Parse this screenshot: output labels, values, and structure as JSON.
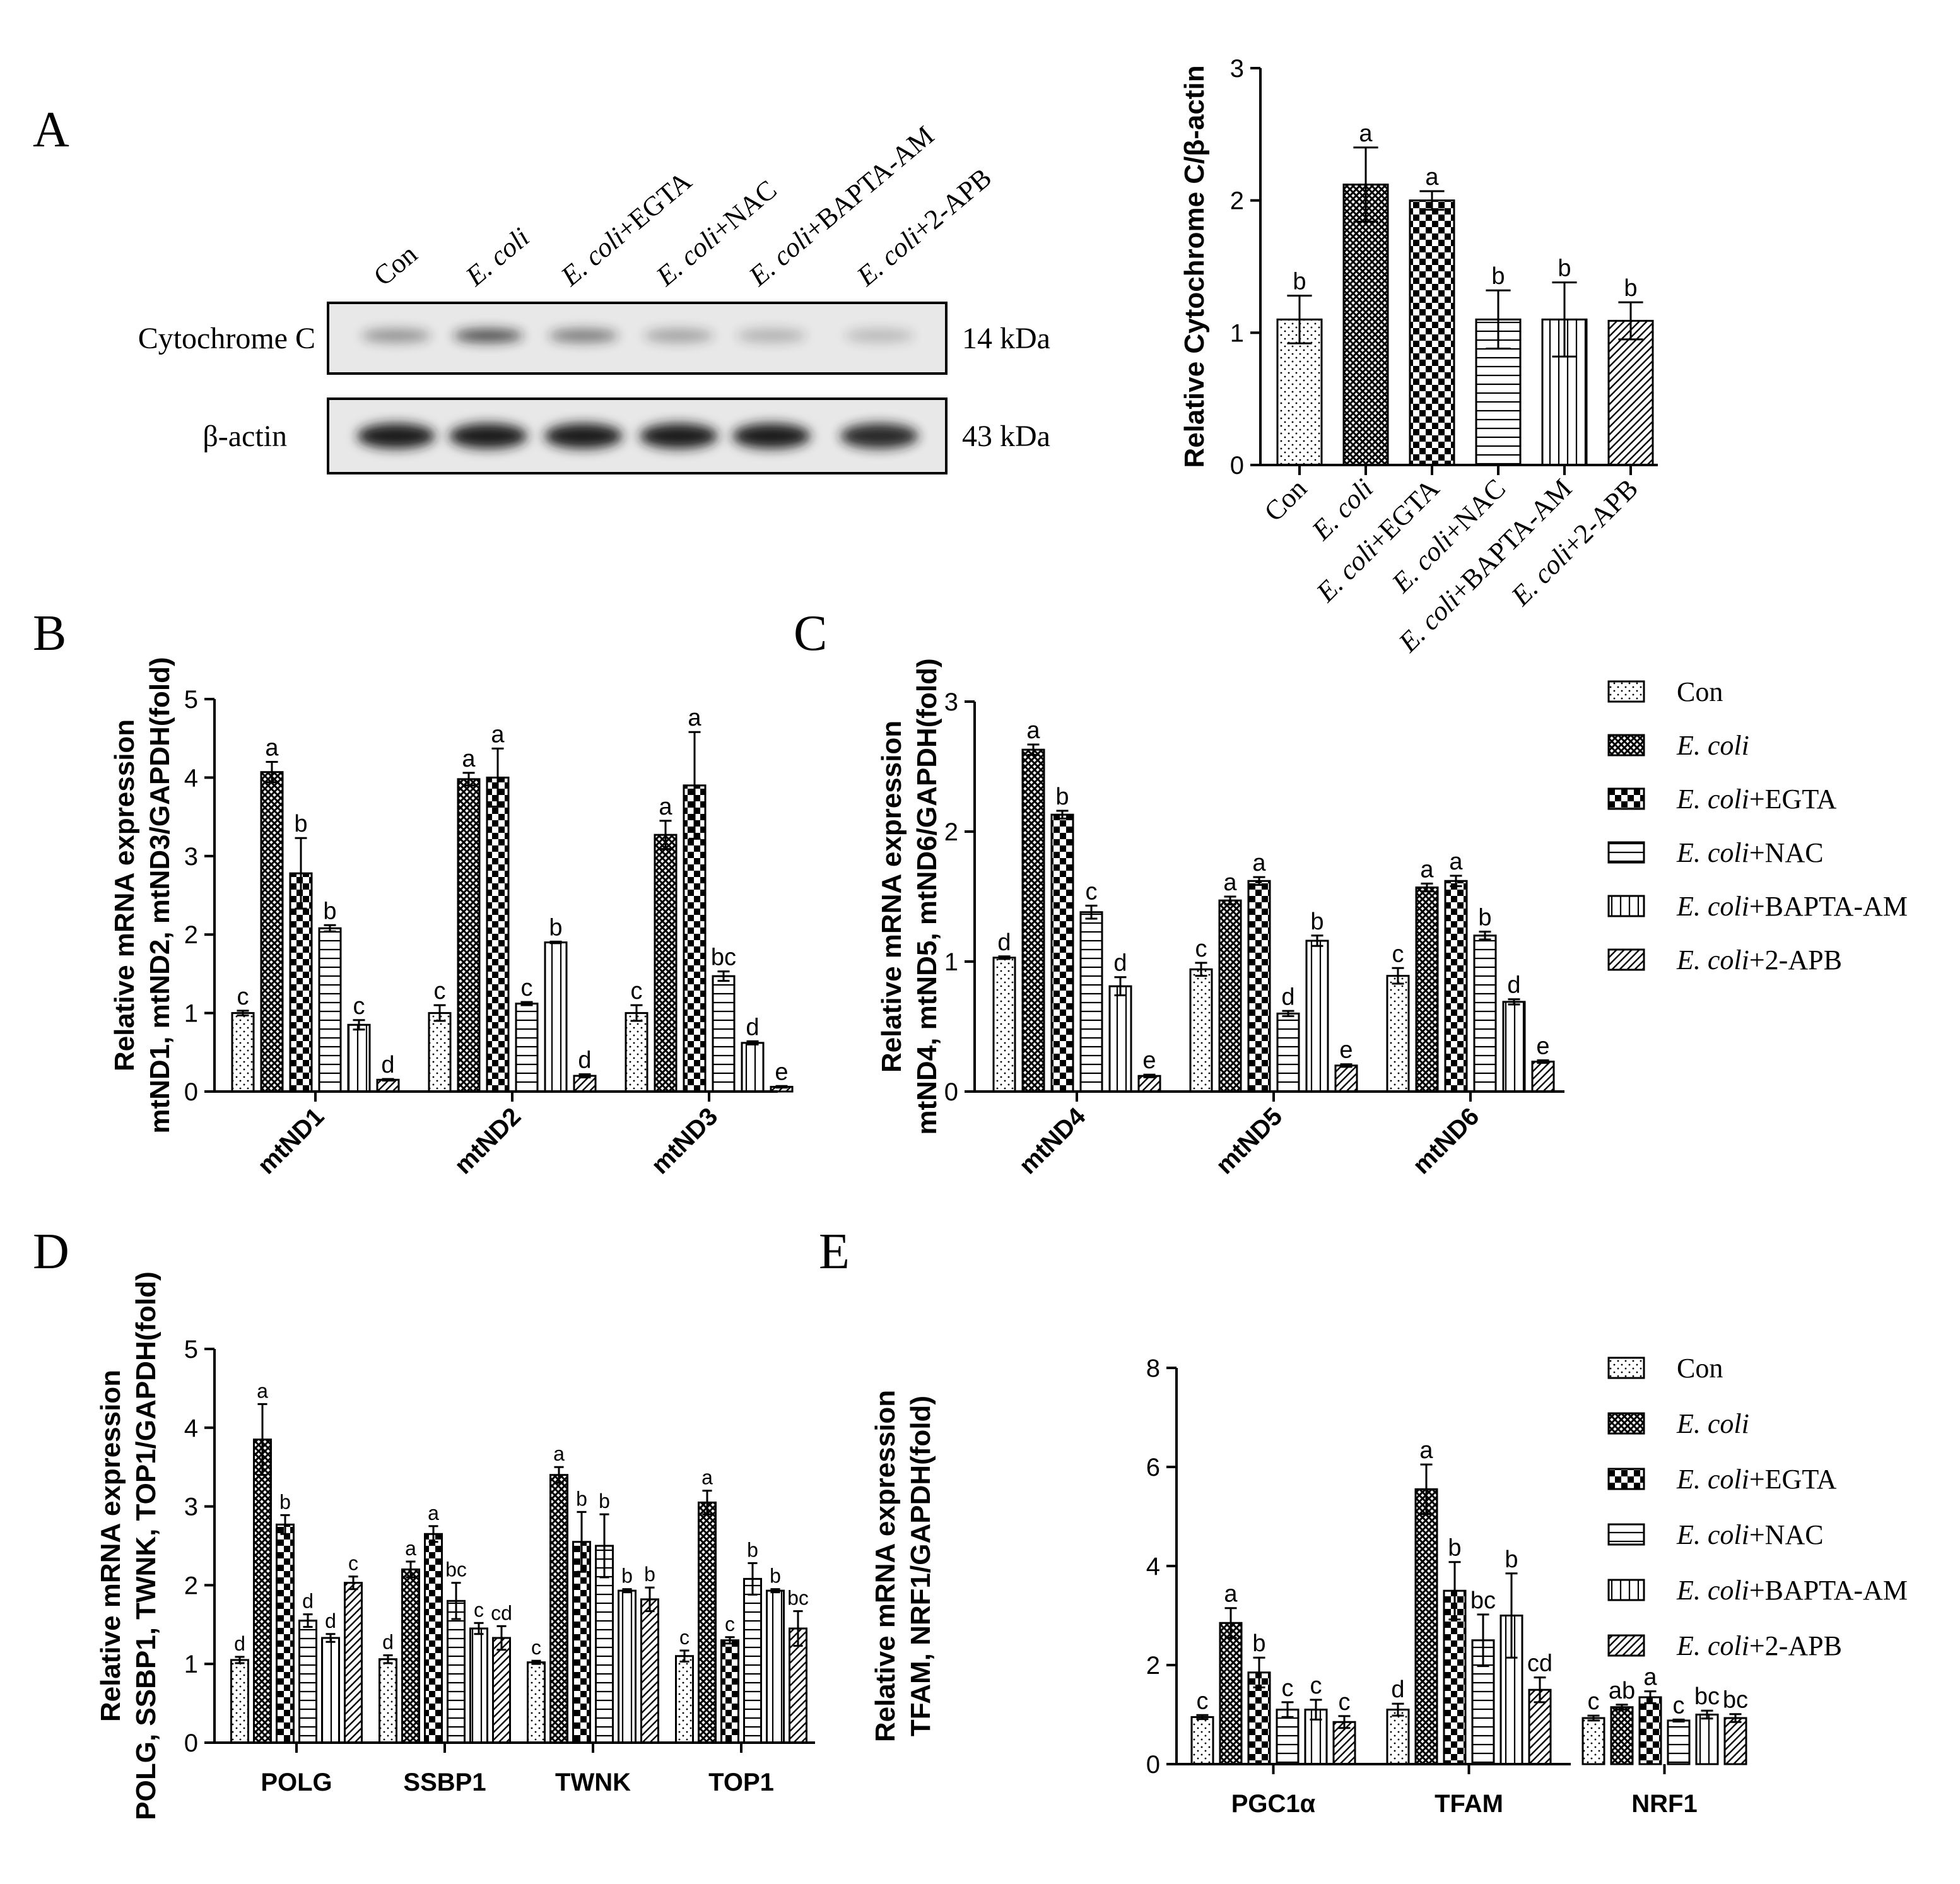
{
  "colors": {
    "ink": "#000000",
    "band": "#1a1a1a",
    "blot_bg": "#e8e8e8"
  },
  "legend": {
    "entries": [
      {
        "pattern": "dots",
        "base": "E. coli",
        "suffix": "",
        "plain": "Con"
      },
      {
        "pattern": "cross",
        "base": "E. coli",
        "suffix": "",
        "plain": ""
      },
      {
        "pattern": "check",
        "base": "E. coli",
        "suffix": "+EGTA",
        "plain": ""
      },
      {
        "pattern": "hlines",
        "base": "E. coli",
        "suffix": "+NAC",
        "plain": ""
      },
      {
        "pattern": "vlines",
        "base": "E. coli",
        "suffix": "+BAPTA-AM",
        "plain": ""
      },
      {
        "pattern": "diag",
        "base": "E. coli",
        "suffix": "+2-APB",
        "plain": ""
      }
    ]
  },
  "panel_a": {
    "letter": "A",
    "lanes": [
      {
        "plain": "Con",
        "base": "",
        "suffix": ""
      },
      {
        "plain": "",
        "base": "E. coli",
        "suffix": ""
      },
      {
        "plain": "",
        "base": "E. coli",
        "suffix": "+EGTA"
      },
      {
        "plain": "",
        "base": "E. coli",
        "suffix": "+NAC"
      },
      {
        "plain": "",
        "base": "E. coli",
        "suffix": "+BAPTA-AM"
      },
      {
        "plain": "",
        "base": "E. coli",
        "suffix": "+2-APB"
      }
    ],
    "blots": [
      {
        "label": "Cytochrome C",
        "size": "14 kDa",
        "intensity": [
          0.35,
          0.8,
          0.5,
          0.25,
          0.15,
          0.1
        ]
      },
      {
        "label": "β-actin",
        "size": "43 kDa",
        "intensity": [
          1.0,
          1.0,
          1.0,
          1.0,
          1.0,
          0.85
        ]
      }
    ]
  },
  "chart_data": [
    {
      "panel": "A",
      "type": "bar",
      "ylabel": "Relative Cytochrome C/β-actin",
      "ylim": [
        0,
        3
      ],
      "yticks": [
        0,
        1,
        2,
        3
      ],
      "categories": [
        "Con",
        "E. coli",
        "E. coli+EGTA",
        "E. coli+NAC",
        "E. coli+BAPTA-AM",
        "E. coli+2-APB"
      ],
      "series": [
        {
          "values": [
            1.1,
            2.12,
            2.0,
            1.1,
            1.1,
            1.09
          ],
          "errors": [
            0.18,
            0.28,
            0.07,
            0.22,
            0.28,
            0.14
          ],
          "letters": [
            "b",
            "a",
            "a",
            "b",
            "b",
            "b"
          ]
        }
      ]
    },
    {
      "panel": "B",
      "type": "bar",
      "ylabel": [
        "Relative mRNA expression",
        "mtND1, mtND2, mtND3/GAPDH(fold)"
      ],
      "ylim": [
        0,
        5
      ],
      "yticks": [
        0,
        1,
        2,
        3,
        4,
        5
      ],
      "categories": [
        "mtND1",
        "mtND2",
        "mtND3"
      ],
      "series": [
        {
          "name": "Con",
          "values": [
            1.0,
            1.0,
            1.0
          ],
          "errors": [
            0.03,
            0.1,
            0.1
          ],
          "letters": [
            "c",
            "c",
            "c"
          ]
        },
        {
          "name": "E. coli",
          "values": [
            4.07,
            3.98,
            3.27
          ],
          "errors": [
            0.13,
            0.08,
            0.18
          ],
          "letters": [
            "a",
            "a",
            "a"
          ]
        },
        {
          "name": "E. coli+EGTA",
          "values": [
            2.78,
            4.0,
            3.9
          ],
          "errors": [
            0.45,
            0.37,
            0.68
          ],
          "letters": [
            "b",
            "a",
            "a"
          ]
        },
        {
          "name": "E. coli+NAC",
          "values": [
            2.08,
            1.12,
            1.47
          ],
          "errors": [
            0.04,
            0.02,
            0.06
          ],
          "letters": [
            "b",
            "c",
            "bc"
          ]
        },
        {
          "name": "E. coli+BAPTA-AM",
          "values": [
            0.85,
            1.9,
            0.62
          ],
          "errors": [
            0.06,
            0.01,
            0.02
          ],
          "letters": [
            "c",
            "b",
            "d"
          ]
        },
        {
          "name": "E. coli+2-APB",
          "values": [
            0.15,
            0.2,
            0.06
          ],
          "errors": [
            0.01,
            0.02,
            0.01
          ],
          "letters": [
            "d",
            "d",
            "e"
          ]
        }
      ]
    },
    {
      "panel": "C",
      "type": "bar",
      "ylabel": [
        "Relative mRNA expression",
        "mtND4, mtND5, mtND6/GAPDH(fold)"
      ],
      "ylim": [
        0,
        3
      ],
      "yticks": [
        0,
        1,
        2,
        3
      ],
      "categories": [
        "mtND4",
        "mtND5",
        "mtND6"
      ],
      "series": [
        {
          "name": "Con",
          "values": [
            1.03,
            0.94,
            0.89
          ],
          "errors": [
            0.01,
            0.05,
            0.06
          ],
          "letters": [
            "d",
            "c",
            "c"
          ]
        },
        {
          "name": "E. coli",
          "values": [
            2.63,
            1.47,
            1.57
          ],
          "errors": [
            0.04,
            0.03,
            0.03
          ],
          "letters": [
            "a",
            "a",
            "a"
          ]
        },
        {
          "name": "E. coli+EGTA",
          "values": [
            2.13,
            1.62,
            1.62
          ],
          "errors": [
            0.03,
            0.03,
            0.04
          ],
          "letters": [
            "b",
            "a",
            "a"
          ]
        },
        {
          "name": "E. coli+NAC",
          "values": [
            1.38,
            0.6,
            1.2
          ],
          "errors": [
            0.05,
            0.02,
            0.03
          ],
          "letters": [
            "c",
            "d",
            "b"
          ]
        },
        {
          "name": "E. coli+BAPTA-AM",
          "values": [
            0.81,
            1.16,
            0.69
          ],
          "errors": [
            0.07,
            0.04,
            0.02
          ],
          "letters": [
            "d",
            "b",
            "d"
          ]
        },
        {
          "name": "E. coli+2-APB",
          "values": [
            0.12,
            0.2,
            0.23
          ],
          "errors": [
            0.01,
            0.01,
            0.01
          ],
          "letters": [
            "e",
            "e",
            "e"
          ]
        }
      ]
    },
    {
      "panel": "D",
      "type": "bar",
      "ylabel": [
        "Relative mRNA expression",
        "POLG, SSBP1, TWNK, TOP1/GAPDH(fold)"
      ],
      "ylim": [
        0,
        5
      ],
      "yticks": [
        0,
        1,
        2,
        3,
        4,
        5
      ],
      "categories": [
        "POLG",
        "SSBP1",
        "TWNK",
        "TOP1"
      ],
      "series": [
        {
          "name": "Con",
          "values": [
            1.05,
            1.06,
            1.02,
            1.1
          ],
          "errors": [
            0.04,
            0.05,
            0.02,
            0.07
          ],
          "letters": [
            "d",
            "d",
            "c",
            "c"
          ]
        },
        {
          "name": "E. coli",
          "values": [
            3.85,
            2.2,
            3.4,
            3.05
          ],
          "errors": [
            0.45,
            0.1,
            0.1,
            0.15
          ],
          "letters": [
            "a",
            "a",
            "a",
            "a"
          ]
        },
        {
          "name": "E. coli+EGTA",
          "values": [
            2.77,
            2.65,
            2.55,
            1.3
          ],
          "errors": [
            0.12,
            0.1,
            0.38,
            0.04
          ],
          "letters": [
            "b",
            "a",
            "b",
            "c"
          ]
        },
        {
          "name": "E. coli+NAC",
          "values": [
            1.55,
            1.8,
            2.5,
            2.08
          ],
          "errors": [
            0.08,
            0.23,
            0.4,
            0.2
          ],
          "letters": [
            "d",
            "bc",
            "b",
            "b"
          ]
        },
        {
          "name": "E. coli+BAPTA-AM",
          "values": [
            1.33,
            1.45,
            1.93,
            1.93
          ],
          "errors": [
            0.05,
            0.07,
            0.02,
            0.02
          ],
          "letters": [
            "d",
            "c",
            "b",
            "b"
          ]
        },
        {
          "name": "E. coli+2-APB",
          "values": [
            2.03,
            1.33,
            1.82,
            1.45
          ],
          "errors": [
            0.08,
            0.15,
            0.15,
            0.22
          ],
          "letters": [
            "c",
            "cd",
            "b",
            "bc"
          ]
        }
      ]
    },
    {
      "panel": "E",
      "type": "bar",
      "ylabel": [
        "Relative mRNA expression",
        "TFAM, NRF1/GAPDH(fold)"
      ],
      "ylim": [
        0,
        8
      ],
      "yticks": [
        0,
        2,
        4,
        6,
        8
      ],
      "categories": [
        "PGC1α",
        "TFAM",
        "NRF1"
      ],
      "series": [
        {
          "name": "Con",
          "values": [
            0.95,
            1.1,
            0.93
          ],
          "errors": [
            0.04,
            0.12,
            0.05
          ],
          "letters": [
            "c",
            "d",
            "c"
          ]
        },
        {
          "name": "E. coli",
          "values": [
            2.85,
            5.55,
            1.15
          ],
          "errors": [
            0.3,
            0.5,
            0.05
          ],
          "letters": [
            "a",
            "a",
            "ab"
          ]
        },
        {
          "name": "E. coli+EGTA",
          "values": [
            1.85,
            3.5,
            1.35
          ],
          "errors": [
            0.3,
            0.58,
            0.12
          ],
          "letters": [
            "b",
            "b",
            "a"
          ]
        },
        {
          "name": "E. coli+NAC",
          "values": [
            1.1,
            2.5,
            0.88
          ],
          "errors": [
            0.15,
            0.52,
            0.02
          ],
          "letters": [
            "c",
            "bc",
            "c"
          ]
        },
        {
          "name": "E. coli+BAPTA-AM",
          "values": [
            1.1,
            3.0,
            1.0
          ],
          "errors": [
            0.2,
            0.85,
            0.08
          ],
          "letters": [
            "c",
            "b",
            "bc"
          ]
        },
        {
          "name": "E. coli+2-APB",
          "values": [
            0.85,
            1.5,
            0.93
          ],
          "errors": [
            0.12,
            0.25,
            0.08
          ],
          "letters": [
            "c",
            "cd",
            "bc"
          ]
        }
      ]
    }
  ],
  "panel_letters": {
    "b": "B",
    "c": "C",
    "d": "D",
    "e": "E"
  }
}
